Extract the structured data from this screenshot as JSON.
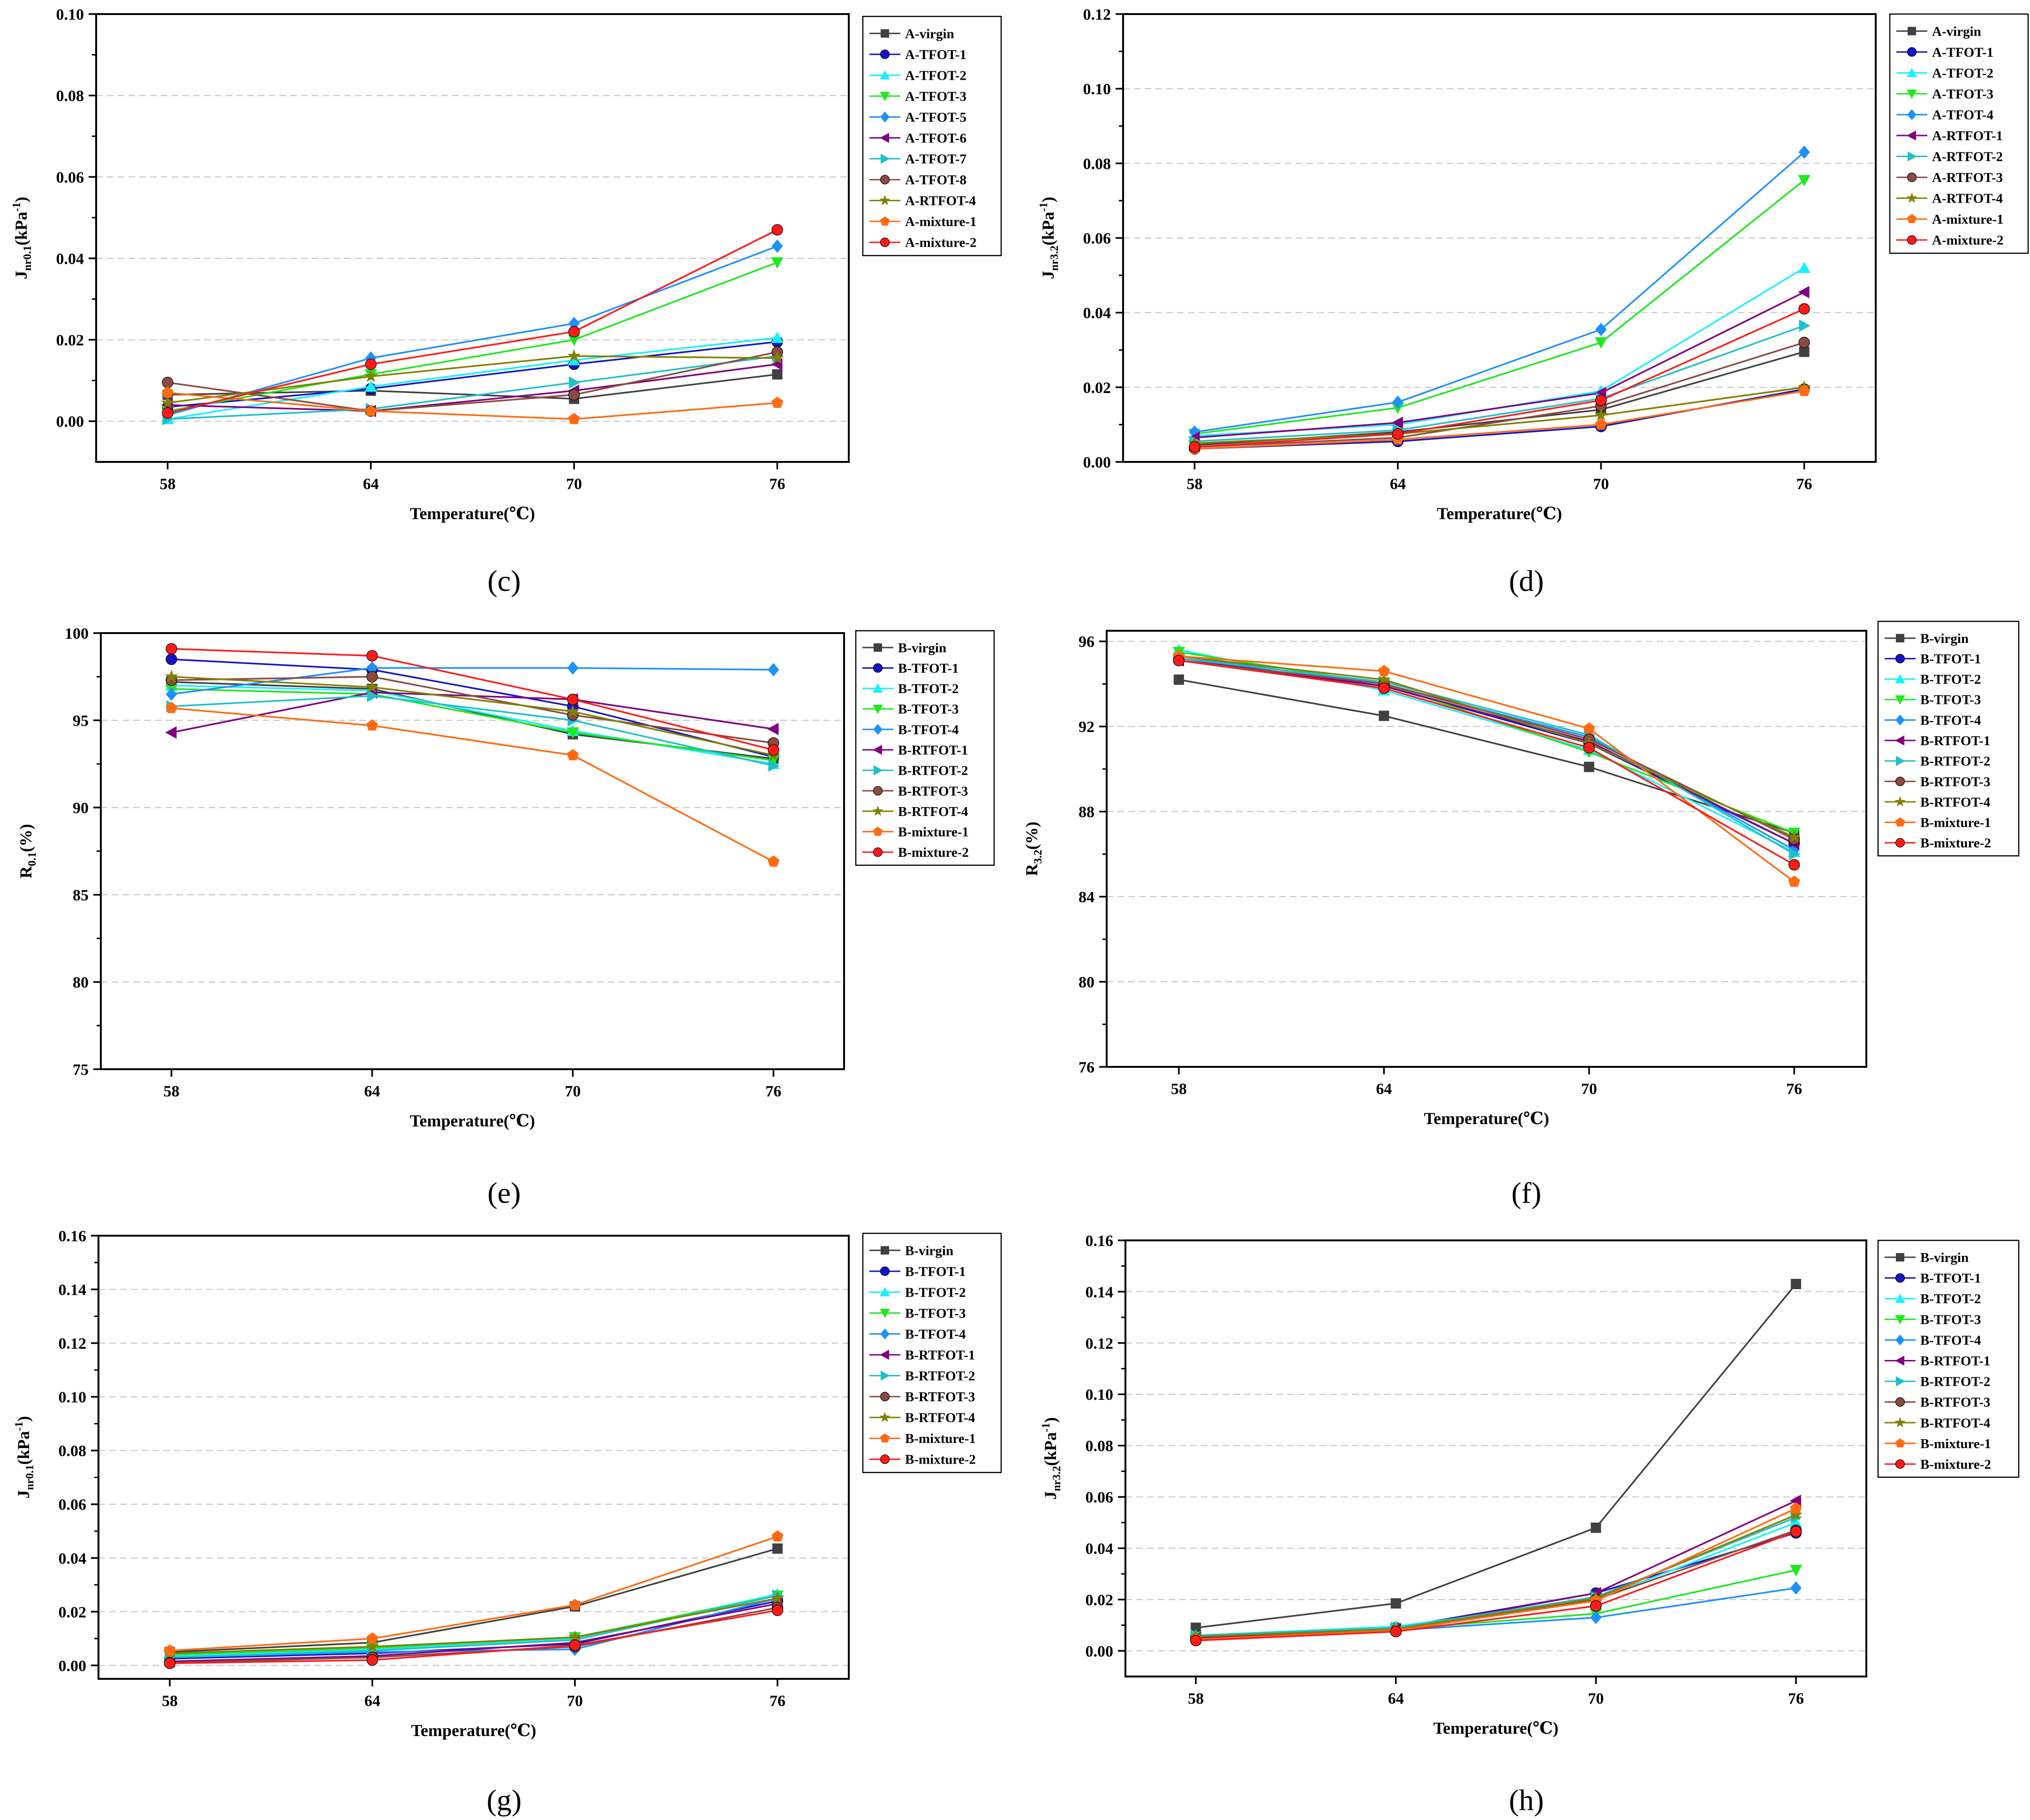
{
  "figure_title": "",
  "colors": {
    "virgin": "#404040",
    "TFOT1": "#1515c8",
    "TFOT2": "#19f0ff",
    "TFOT3": "#1ee81e",
    "TFOT4": "#1e90ff",
    "TFOT6": "#800080",
    "TFOT7": "#20c0c8",
    "TFOT8": "#8b4a42",
    "RTFOT4": "#808000",
    "mixture1": "#ff6a10",
    "mixture2": "#ff1a1a",
    "grid": "#c8c8c8",
    "axis": "#000000"
  },
  "chart_data": [
    {
      "type": "line",
      "panel_label": "(c)",
      "xlabel": "Temperature(℃)",
      "ylabel_main": "J",
      "ylabel_sub": "nr0.1",
      "ylabel_unit": "(kPa",
      "ylabel_sup": "-1",
      "ylabel_close": ")",
      "categories": [
        "58",
        "64",
        "70",
        "76"
      ],
      "x": [
        58,
        64,
        70,
        76
      ],
      "ylim": [
        -0.01,
        0.1
      ],
      "yticks": [
        0.0,
        0.02,
        0.04,
        0.06,
        0.08,
        0.1
      ],
      "ytick_labels": [
        "0.00",
        "0.02",
        "0.04",
        "0.06",
        "0.08",
        "0.10"
      ],
      "series": [
        {
          "name": "A-virgin",
          "color_key": "virgin",
          "marker": "square",
          "values": [
            0.0065,
            0.0075,
            0.0055,
            0.0115
          ]
        },
        {
          "name": "A-TFOT-1",
          "color_key": "TFOT1",
          "marker": "circle",
          "values": [
            0.0035,
            0.008,
            0.014,
            0.0195
          ]
        },
        {
          "name": "A-TFOT-2",
          "color_key": "TFOT2",
          "marker": "triangle-up",
          "values": [
            0.0005,
            0.0085,
            0.015,
            0.0205
          ]
        },
        {
          "name": "A-TFOT-3",
          "color_key": "TFOT3",
          "marker": "triangle-down",
          "values": [
            0.0025,
            0.0115,
            0.02,
            0.039
          ]
        },
        {
          "name": "A-TFOT-5",
          "color_key": "TFOT4",
          "marker": "diamond",
          "values": [
            0.0015,
            0.0155,
            0.024,
            0.043
          ]
        },
        {
          "name": "A-TFOT-6",
          "color_key": "TFOT6",
          "marker": "triangle-left",
          "values": [
            0.004,
            0.0025,
            0.0075,
            0.014
          ]
        },
        {
          "name": "A-TFOT-7",
          "color_key": "TFOT7",
          "marker": "triangle-right",
          "values": [
            0.0005,
            0.003,
            0.0095,
            0.016
          ]
        },
        {
          "name": "A-TFOT-8",
          "color_key": "TFOT8",
          "marker": "circle",
          "values": [
            0.0095,
            0.0025,
            0.0065,
            0.017
          ]
        },
        {
          "name": "A-RTFOT-4",
          "color_key": "RTFOT4",
          "marker": "star",
          "values": [
            0.0045,
            0.011,
            0.016,
            0.0155
          ]
        },
        {
          "name": "A-mixture-1",
          "color_key": "mixture1",
          "marker": "pentagon",
          "values": [
            0.007,
            0.0025,
            0.0005,
            0.0045
          ]
        },
        {
          "name": "A-mixture-2",
          "color_key": "mixture2",
          "marker": "circle",
          "values": [
            0.002,
            0.014,
            0.022,
            0.047
          ]
        }
      ]
    },
    {
      "type": "line",
      "panel_label": "(d)",
      "xlabel": "Temperature(℃)",
      "ylabel_main": "J",
      "ylabel_sub": "nr3.2",
      "ylabel_unit": "(kPa",
      "ylabel_sup": "-1",
      "ylabel_close": ")",
      "categories": [
        "58",
        "64",
        "70",
        "76"
      ],
      "x": [
        58,
        64,
        70,
        76
      ],
      "ylim": [
        0.0,
        0.12
      ],
      "yticks": [
        0.0,
        0.02,
        0.04,
        0.06,
        0.08,
        0.1,
        0.12
      ],
      "ytick_labels": [
        "0.00",
        "0.02",
        "0.04",
        "0.06",
        "0.08",
        "0.10",
        "0.12"
      ],
      "series": [
        {
          "name": "A-virgin",
          "color_key": "virgin",
          "marker": "square",
          "values": [
            0.0045,
            0.008,
            0.014,
            0.0295
          ]
        },
        {
          "name": "A-TFOT-1",
          "color_key": "TFOT1",
          "marker": "circle",
          "values": [
            0.0035,
            0.0055,
            0.0095,
            0.0195
          ]
        },
        {
          "name": "A-TFOT-2",
          "color_key": "TFOT2",
          "marker": "triangle-up",
          "values": [
            0.007,
            0.01,
            0.019,
            0.052
          ]
        },
        {
          "name": "A-TFOT-3",
          "color_key": "TFOT3",
          "marker": "triangle-down",
          "values": [
            0.0075,
            0.0145,
            0.032,
            0.0755
          ]
        },
        {
          "name": "A-TFOT-4",
          "color_key": "TFOT4",
          "marker": "diamond",
          "values": [
            0.008,
            0.016,
            0.0355,
            0.083
          ]
        },
        {
          "name": "A-RTFOT-1",
          "color_key": "TFOT6",
          "marker": "triangle-left",
          "values": [
            0.0065,
            0.0105,
            0.0185,
            0.0455
          ]
        },
        {
          "name": "A-RTFOT-2",
          "color_key": "TFOT7",
          "marker": "triangle-right",
          "values": [
            0.0055,
            0.0085,
            0.017,
            0.0365
          ]
        },
        {
          "name": "A-RTFOT-3",
          "color_key": "TFOT8",
          "marker": "circle",
          "values": [
            0.004,
            0.0065,
            0.015,
            0.032
          ]
        },
        {
          "name": "A-RTFOT-4",
          "color_key": "RTFOT4",
          "marker": "star",
          "values": [
            0.005,
            0.0075,
            0.0125,
            0.02
          ]
        },
        {
          "name": "A-mixture-1",
          "color_key": "mixture1",
          "marker": "pentagon",
          "values": [
            0.0035,
            0.006,
            0.01,
            0.019
          ]
        },
        {
          "name": "A-mixture-2",
          "color_key": "mixture2",
          "marker": "circle",
          "values": [
            0.004,
            0.0075,
            0.0165,
            0.041
          ]
        }
      ]
    },
    {
      "type": "line",
      "panel_label": "(e)",
      "xlabel": "Temperature(℃)",
      "ylabel_main": "R",
      "ylabel_sub": "0.1",
      "ylabel_unit": "(%)",
      "ylabel_sup": "",
      "ylabel_close": "",
      "categories": [
        "58",
        "64",
        "70",
        "76"
      ],
      "x": [
        58,
        64,
        70,
        76
      ],
      "ylim": [
        75,
        100
      ],
      "yticks": [
        75,
        80,
        85,
        90,
        95,
        100
      ],
      "ytick_labels": [
        "75",
        "80",
        "85",
        "90",
        "95",
        "100"
      ],
      "series": [
        {
          "name": "B-virgin",
          "color_key": "virgin",
          "marker": "square",
          "values": [
            97.2,
            96.8,
            94.2,
            92.8
          ]
        },
        {
          "name": "B-TFOT-1",
          "color_key": "TFOT1",
          "marker": "circle",
          "values": [
            98.5,
            97.9,
            95.8,
            92.9
          ]
        },
        {
          "name": "B-TFOT-2",
          "color_key": "TFOT2",
          "marker": "triangle-up",
          "values": [
            97.0,
            96.7,
            94.4,
            92.5
          ]
        },
        {
          "name": "B-TFOT-3",
          "color_key": "TFOT3",
          "marker": "triangle-down",
          "values": [
            96.8,
            96.5,
            94.3,
            92.7
          ]
        },
        {
          "name": "B-TFOT-4",
          "color_key": "TFOT4",
          "marker": "diamond",
          "values": [
            96.5,
            98.0,
            98.0,
            97.9
          ]
        },
        {
          "name": "B-RTFOT-1",
          "color_key": "TFOT6",
          "marker": "triangle-left",
          "values": [
            94.3,
            96.6,
            96.2,
            94.5
          ]
        },
        {
          "name": "B-RTFOT-2",
          "color_key": "TFOT7",
          "marker": "triangle-right",
          "values": [
            95.8,
            96.4,
            95.0,
            92.4
          ]
        },
        {
          "name": "B-RTFOT-3",
          "color_key": "TFOT8",
          "marker": "circle",
          "values": [
            97.3,
            97.5,
            95.3,
            93.7
          ]
        },
        {
          "name": "B-RTFOT-4",
          "color_key": "RTFOT4",
          "marker": "star",
          "values": [
            97.5,
            96.9,
            95.5,
            93.0
          ]
        },
        {
          "name": "B-mixture-1",
          "color_key": "mixture1",
          "marker": "pentagon",
          "values": [
            95.7,
            94.7,
            93.0,
            86.9
          ]
        },
        {
          "name": "B-mixture-2",
          "color_key": "mixture2",
          "marker": "circle",
          "values": [
            99.1,
            98.7,
            96.2,
            93.3
          ]
        }
      ]
    },
    {
      "type": "line",
      "panel_label": "(f)",
      "xlabel": "Temperature(℃)",
      "ylabel_main": "R",
      "ylabel_sub": "3.2",
      "ylabel_unit": "(%)",
      "ylabel_sup": "",
      "ylabel_close": "",
      "categories": [
        "58",
        "64",
        "70",
        "76"
      ],
      "x": [
        58,
        64,
        70,
        76
      ],
      "ylim": [
        76,
        96.5
      ],
      "yticks": [
        76,
        80,
        84,
        88,
        92,
        96
      ],
      "ytick_labels": [
        "76",
        "80",
        "84",
        "88",
        "92",
        "96"
      ],
      "series": [
        {
          "name": "B-virgin",
          "color_key": "virgin",
          "marker": "square",
          "values": [
            94.2,
            92.5,
            90.1,
            87.0
          ]
        },
        {
          "name": "B-TFOT-1",
          "color_key": "TFOT1",
          "marker": "circle",
          "values": [
            95.2,
            93.9,
            91.2,
            86.5
          ]
        },
        {
          "name": "B-TFOT-2",
          "color_key": "TFOT2",
          "marker": "triangle-up",
          "values": [
            95.6,
            93.7,
            90.9,
            86.1
          ]
        },
        {
          "name": "B-TFOT-3",
          "color_key": "TFOT3",
          "marker": "triangle-down",
          "values": [
            95.5,
            94.0,
            90.8,
            87.0
          ]
        },
        {
          "name": "B-TFOT-4",
          "color_key": "TFOT4",
          "marker": "diamond",
          "values": [
            95.3,
            94.0,
            91.5,
            86.2
          ]
        },
        {
          "name": "B-RTFOT-1",
          "color_key": "TFOT6",
          "marker": "triangle-left",
          "values": [
            95.1,
            93.9,
            91.3,
            86.5
          ]
        },
        {
          "name": "B-RTFOT-2",
          "color_key": "TFOT7",
          "marker": "triangle-right",
          "values": [
            95.2,
            94.1,
            91.6,
            86.0
          ]
        },
        {
          "name": "B-RTFOT-3",
          "color_key": "TFOT8",
          "marker": "circle",
          "values": [
            95.1,
            94.0,
            91.4,
            86.7
          ]
        },
        {
          "name": "B-RTFOT-4",
          "color_key": "RTFOT4",
          "marker": "star",
          "values": [
            95.3,
            94.2,
            91.2,
            86.8
          ]
        },
        {
          "name": "B-mixture-1",
          "color_key": "mixture1",
          "marker": "pentagon",
          "values": [
            95.3,
            94.6,
            91.9,
            84.7
          ]
        },
        {
          "name": "B-mixture-2",
          "color_key": "mixture2",
          "marker": "circle",
          "values": [
            95.1,
            93.8,
            91.0,
            85.5
          ]
        }
      ]
    },
    {
      "type": "line",
      "panel_label": "(g)",
      "xlabel": "Temperature(℃)",
      "ylabel_main": "J",
      "ylabel_sub": "nr0.1",
      "ylabel_unit": "(kPa",
      "ylabel_sup": "-1",
      "ylabel_close": ")",
      "categories": [
        "58",
        "64",
        "70",
        "76"
      ],
      "x": [
        58,
        64,
        70,
        76
      ],
      "ylim": [
        -0.005,
        0.16
      ],
      "yticks": [
        0.0,
        0.02,
        0.04,
        0.06,
        0.08,
        0.1,
        0.12,
        0.14,
        0.16
      ],
      "ytick_labels": [
        "0.00",
        "0.02",
        "0.04",
        "0.06",
        "0.08",
        "0.10",
        "0.12",
        "0.14",
        "0.16"
      ],
      "series": [
        {
          "name": "B-virgin",
          "color_key": "virgin",
          "marker": "square",
          "values": [
            0.005,
            0.0085,
            0.022,
            0.0435
          ]
        },
        {
          "name": "B-TFOT-1",
          "color_key": "TFOT1",
          "marker": "circle",
          "values": [
            0.0025,
            0.0045,
            0.008,
            0.024
          ]
        },
        {
          "name": "B-TFOT-2",
          "color_key": "TFOT2",
          "marker": "triangle-up",
          "values": [
            0.0035,
            0.006,
            0.01,
            0.0265
          ]
        },
        {
          "name": "B-TFOT-3",
          "color_key": "TFOT3",
          "marker": "triangle-down",
          "values": [
            0.004,
            0.0065,
            0.0105,
            0.026
          ]
        },
        {
          "name": "B-TFOT-4",
          "color_key": "TFOT4",
          "marker": "diamond",
          "values": [
            0.003,
            0.005,
            0.006,
            0.025
          ]
        },
        {
          "name": "B-RTFOT-1",
          "color_key": "TFOT6",
          "marker": "triangle-left",
          "values": [
            0.0015,
            0.0035,
            0.0085,
            0.023
          ]
        },
        {
          "name": "B-RTFOT-2",
          "color_key": "TFOT7",
          "marker": "triangle-right",
          "values": [
            0.003,
            0.0055,
            0.0095,
            0.026
          ]
        },
        {
          "name": "B-RTFOT-3",
          "color_key": "TFOT8",
          "marker": "circle",
          "values": [
            0.001,
            0.003,
            0.007,
            0.0215
          ]
        },
        {
          "name": "B-RTFOT-4",
          "color_key": "RTFOT4",
          "marker": "star",
          "values": [
            0.0045,
            0.007,
            0.0105,
            0.025
          ]
        },
        {
          "name": "B-mixture-1",
          "color_key": "mixture1",
          "marker": "pentagon",
          "values": [
            0.0055,
            0.01,
            0.0225,
            0.048
          ]
        },
        {
          "name": "B-mixture-2",
          "color_key": "mixture2",
          "marker": "circle",
          "values": [
            0.0008,
            0.002,
            0.0075,
            0.0205
          ]
        }
      ]
    },
    {
      "type": "line",
      "panel_label": "(h)",
      "xlabel": "Temperature(℃)",
      "ylabel_main": "J",
      "ylabel_sub": "nr3.2",
      "ylabel_unit": "(kPa",
      "ylabel_sup": "-1",
      "ylabel_close": ")",
      "categories": [
        "58",
        "64",
        "70",
        "76"
      ],
      "x": [
        58,
        64,
        70,
        76
      ],
      "ylim": [
        -0.01,
        0.16
      ],
      "yticks": [
        0.0,
        0.02,
        0.04,
        0.06,
        0.08,
        0.1,
        0.12,
        0.14,
        0.16
      ],
      "ytick_labels": [
        "0.00",
        "0.02",
        "0.04",
        "0.06",
        "0.08",
        "0.10",
        "0.12",
        "0.14",
        "0.16"
      ],
      "series": [
        {
          "name": "B-virgin",
          "color_key": "virgin",
          "marker": "square",
          "values": [
            0.009,
            0.0185,
            0.048,
            0.143
          ]
        },
        {
          "name": "B-TFOT-1",
          "color_key": "TFOT1",
          "marker": "circle",
          "values": [
            0.0055,
            0.009,
            0.0225,
            0.046
          ]
        },
        {
          "name": "B-TFOT-2",
          "color_key": "TFOT2",
          "marker": "triangle-up",
          "values": [
            0.006,
            0.0095,
            0.02,
            0.05
          ]
        },
        {
          "name": "B-TFOT-3",
          "color_key": "TFOT3",
          "marker": "triangle-down",
          "values": [
            0.0055,
            0.0085,
            0.0145,
            0.0315
          ]
        },
        {
          "name": "B-TFOT-4",
          "color_key": "TFOT4",
          "marker": "diamond",
          "values": [
            0.005,
            0.008,
            0.013,
            0.0245
          ]
        },
        {
          "name": "B-RTFOT-1",
          "color_key": "TFOT6",
          "marker": "triangle-left",
          "values": [
            0.005,
            0.0085,
            0.0225,
            0.0585
          ]
        },
        {
          "name": "B-RTFOT-2",
          "color_key": "TFOT7",
          "marker": "triangle-right",
          "values": [
            0.006,
            0.009,
            0.021,
            0.052
          ]
        },
        {
          "name": "B-RTFOT-3",
          "color_key": "TFOT8",
          "marker": "circle",
          "values": [
            0.0045,
            0.008,
            0.02,
            0.047
          ]
        },
        {
          "name": "B-RTFOT-4",
          "color_key": "RTFOT4",
          "marker": "star",
          "values": [
            0.0055,
            0.0085,
            0.0205,
            0.053
          ]
        },
        {
          "name": "B-mixture-1",
          "color_key": "mixture1",
          "marker": "pentagon",
          "values": [
            0.0045,
            0.008,
            0.0195,
            0.0555
          ]
        },
        {
          "name": "B-mixture-2",
          "color_key": "mixture2",
          "marker": "circle",
          "values": [
            0.004,
            0.0075,
            0.0175,
            0.0465
          ]
        }
      ]
    }
  ]
}
